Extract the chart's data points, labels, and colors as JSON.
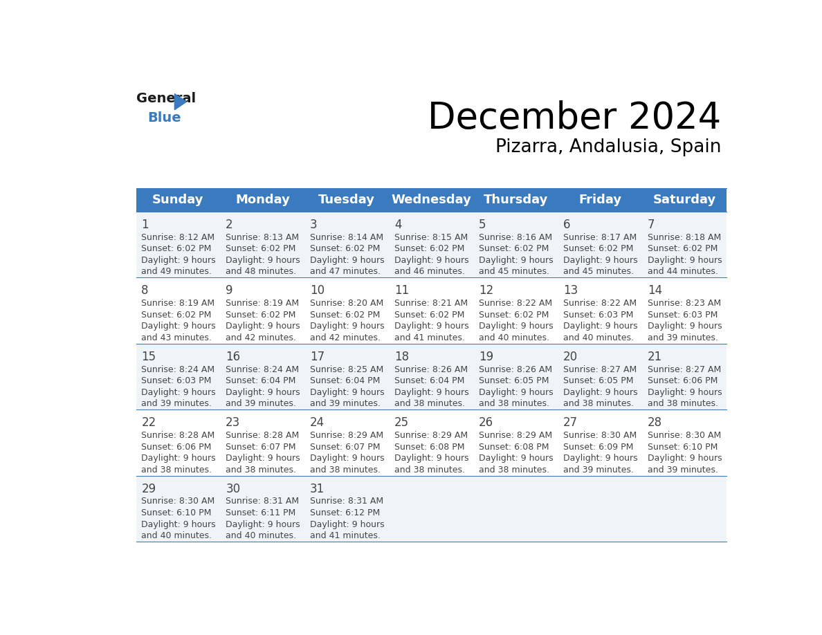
{
  "title": "December 2024",
  "subtitle": "Pizarra, Andalusia, Spain",
  "header_color": "#3a7abf",
  "header_text_color": "#ffffff",
  "row_colors": [
    "#f0f4f8",
    "#ffffff",
    "#f0f4f8",
    "#ffffff",
    "#f0f4f8"
  ],
  "border_color": "#3a7abf",
  "day_names": [
    "Sunday",
    "Monday",
    "Tuesday",
    "Wednesday",
    "Thursday",
    "Friday",
    "Saturday"
  ],
  "weeks": [
    [
      {
        "day": 1,
        "sunrise": "8:12 AM",
        "sunset": "6:02 PM",
        "daylight": "9 hours and 49 minutes."
      },
      {
        "day": 2,
        "sunrise": "8:13 AM",
        "sunset": "6:02 PM",
        "daylight": "9 hours and 48 minutes."
      },
      {
        "day": 3,
        "sunrise": "8:14 AM",
        "sunset": "6:02 PM",
        "daylight": "9 hours and 47 minutes."
      },
      {
        "day": 4,
        "sunrise": "8:15 AM",
        "sunset": "6:02 PM",
        "daylight": "9 hours and 46 minutes."
      },
      {
        "day": 5,
        "sunrise": "8:16 AM",
        "sunset": "6:02 PM",
        "daylight": "9 hours and 45 minutes."
      },
      {
        "day": 6,
        "sunrise": "8:17 AM",
        "sunset": "6:02 PM",
        "daylight": "9 hours and 45 minutes."
      },
      {
        "day": 7,
        "sunrise": "8:18 AM",
        "sunset": "6:02 PM",
        "daylight": "9 hours and 44 minutes."
      }
    ],
    [
      {
        "day": 8,
        "sunrise": "8:19 AM",
        "sunset": "6:02 PM",
        "daylight": "9 hours and 43 minutes."
      },
      {
        "day": 9,
        "sunrise": "8:19 AM",
        "sunset": "6:02 PM",
        "daylight": "9 hours and 42 minutes."
      },
      {
        "day": 10,
        "sunrise": "8:20 AM",
        "sunset": "6:02 PM",
        "daylight": "9 hours and 42 minutes."
      },
      {
        "day": 11,
        "sunrise": "8:21 AM",
        "sunset": "6:02 PM",
        "daylight": "9 hours and 41 minutes."
      },
      {
        "day": 12,
        "sunrise": "8:22 AM",
        "sunset": "6:02 PM",
        "daylight": "9 hours and 40 minutes."
      },
      {
        "day": 13,
        "sunrise": "8:22 AM",
        "sunset": "6:03 PM",
        "daylight": "9 hours and 40 minutes."
      },
      {
        "day": 14,
        "sunrise": "8:23 AM",
        "sunset": "6:03 PM",
        "daylight": "9 hours and 39 minutes."
      }
    ],
    [
      {
        "day": 15,
        "sunrise": "8:24 AM",
        "sunset": "6:03 PM",
        "daylight": "9 hours and 39 minutes."
      },
      {
        "day": 16,
        "sunrise": "8:24 AM",
        "sunset": "6:04 PM",
        "daylight": "9 hours and 39 minutes."
      },
      {
        "day": 17,
        "sunrise": "8:25 AM",
        "sunset": "6:04 PM",
        "daylight": "9 hours and 39 minutes."
      },
      {
        "day": 18,
        "sunrise": "8:26 AM",
        "sunset": "6:04 PM",
        "daylight": "9 hours and 38 minutes."
      },
      {
        "day": 19,
        "sunrise": "8:26 AM",
        "sunset": "6:05 PM",
        "daylight": "9 hours and 38 minutes."
      },
      {
        "day": 20,
        "sunrise": "8:27 AM",
        "sunset": "6:05 PM",
        "daylight": "9 hours and 38 minutes."
      },
      {
        "day": 21,
        "sunrise": "8:27 AM",
        "sunset": "6:06 PM",
        "daylight": "9 hours and 38 minutes."
      }
    ],
    [
      {
        "day": 22,
        "sunrise": "8:28 AM",
        "sunset": "6:06 PM",
        "daylight": "9 hours and 38 minutes."
      },
      {
        "day": 23,
        "sunrise": "8:28 AM",
        "sunset": "6:07 PM",
        "daylight": "9 hours and 38 minutes."
      },
      {
        "day": 24,
        "sunrise": "8:29 AM",
        "sunset": "6:07 PM",
        "daylight": "9 hours and 38 minutes."
      },
      {
        "day": 25,
        "sunrise": "8:29 AM",
        "sunset": "6:08 PM",
        "daylight": "9 hours and 38 minutes."
      },
      {
        "day": 26,
        "sunrise": "8:29 AM",
        "sunset": "6:08 PM",
        "daylight": "9 hours and 38 minutes."
      },
      {
        "day": 27,
        "sunrise": "8:30 AM",
        "sunset": "6:09 PM",
        "daylight": "9 hours and 39 minutes."
      },
      {
        "day": 28,
        "sunrise": "8:30 AM",
        "sunset": "6:10 PM",
        "daylight": "9 hours and 39 minutes."
      }
    ],
    [
      {
        "day": 29,
        "sunrise": "8:30 AM",
        "sunset": "6:10 PM",
        "daylight": "9 hours and 40 minutes."
      },
      {
        "day": 30,
        "sunrise": "8:31 AM",
        "sunset": "6:11 PM",
        "daylight": "9 hours and 40 minutes."
      },
      {
        "day": 31,
        "sunrise": "8:31 AM",
        "sunset": "6:12 PM",
        "daylight": "9 hours and 41 minutes."
      },
      null,
      null,
      null,
      null
    ]
  ],
  "title_fontsize": 38,
  "subtitle_fontsize": 19,
  "header_fontsize": 13,
  "day_num_fontsize": 12,
  "cell_text_fontsize": 9
}
